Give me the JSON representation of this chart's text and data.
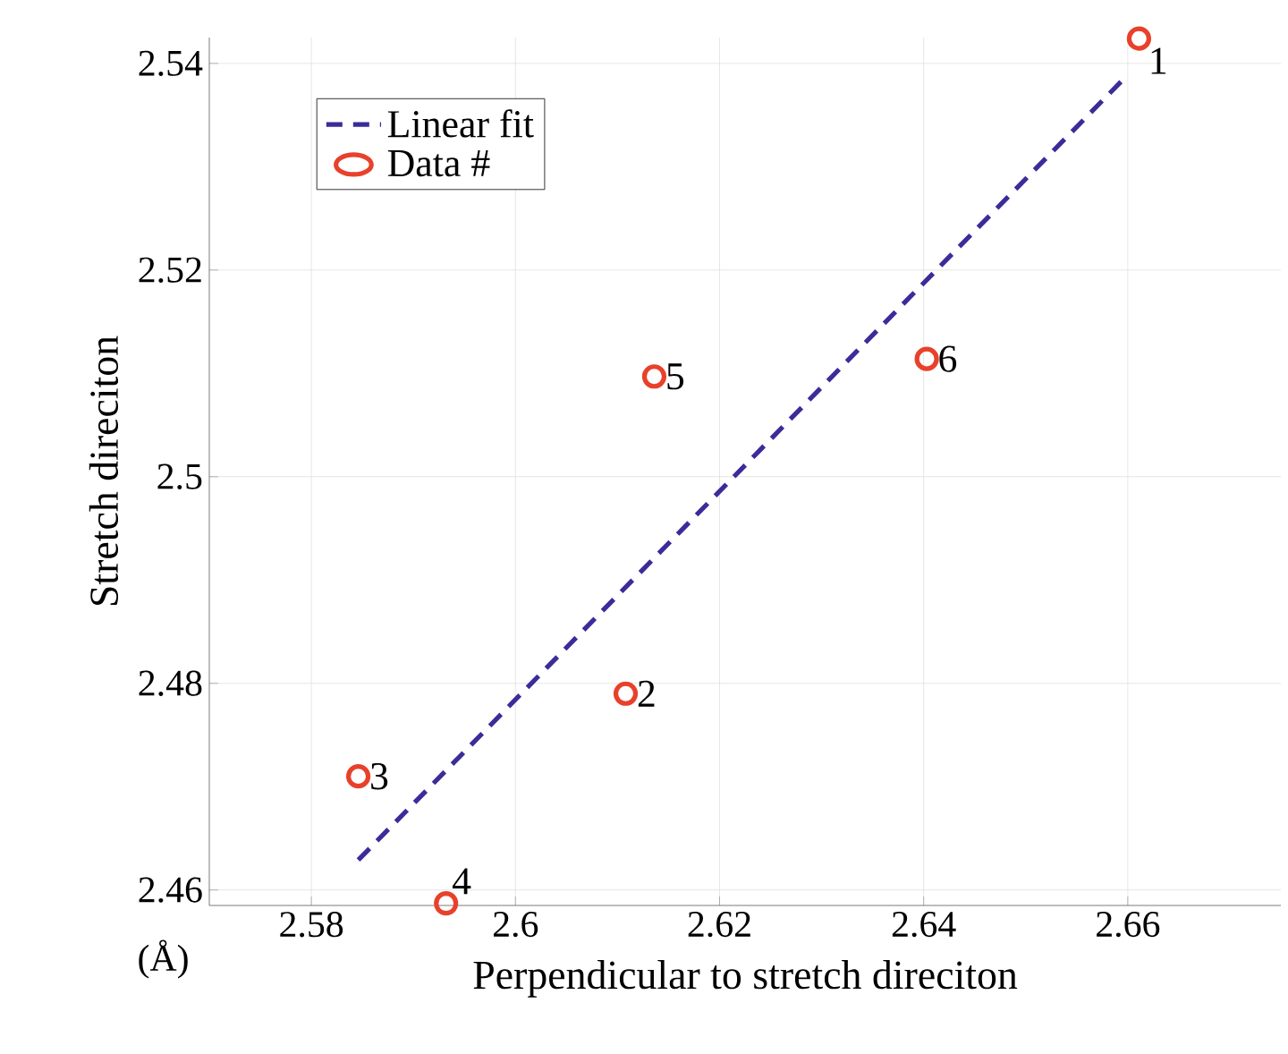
{
  "chart_data": {
    "type": "scatter",
    "xlabel": "Perpendicular to stretch direciton",
    "ylabel": "Stretch direciton",
    "series": [
      {
        "name": "Linear fit",
        "type": "line",
        "color": "#3b2c9a",
        "line_style": "dashed",
        "marker": "none",
        "x": [
          2.5846,
          2.6597
        ],
        "values": [
          2.4629,
          2.5386
        ]
      },
      {
        "name": "Data #",
        "color": "#e8412b",
        "marker": "circle",
        "x": [
          2.6611,
          2.6108,
          2.5846,
          2.5932,
          2.6136,
          2.6403
        ],
        "values": [
          2.5424,
          2.479,
          2.471,
          2.4587,
          2.5097,
          2.5114
        ]
      }
    ],
    "annotations": [
      {
        "text": "1",
        "x": 2.6611,
        "y": 2.5424
      },
      {
        "text": "2",
        "x": 2.6108,
        "y": 2.479
      },
      {
        "text": "3",
        "x": 2.5846,
        "y": 2.471
      },
      {
        "text": "4",
        "x": 2.5932,
        "y": 2.4587
      },
      {
        "text": "5",
        "x": 2.6136,
        "y": 2.5097
      },
      {
        "text": "6",
        "x": 2.6403,
        "y": 2.5114
      },
      "(Å)"
    ],
    "xlim": [
      2.57,
      2.675
    ],
    "ylim": [
      2.4585,
      2.5425
    ],
    "xticks": [
      2.58,
      2.6,
      2.62,
      2.64,
      2.66
    ],
    "yticks": [
      2.46,
      2.48,
      2.5,
      2.52,
      2.54
    ],
    "grid": true,
    "legend": "top left"
  }
}
